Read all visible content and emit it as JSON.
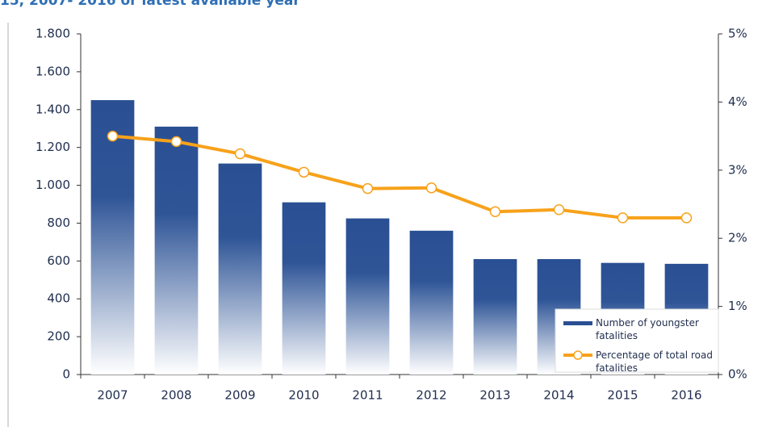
{
  "chart_data": {
    "type": "bar_line",
    "title": "15, 2007- 2016 or latest available year",
    "categories": [
      "2007",
      "2008",
      "2009",
      "2010",
      "2011",
      "2012",
      "2013",
      "2014",
      "2015",
      "2016"
    ],
    "series": [
      {
        "name": "Number of youngster fatalities",
        "type": "bar",
        "color": "#2a4f93",
        "values": [
          1450,
          1310,
          1115,
          910,
          825,
          760,
          610,
          610,
          590,
          585
        ]
      },
      {
        "name": "Percentage of total road fatalities",
        "type": "line",
        "axis": "y2",
        "color": "#f7a21b",
        "values": [
          3.5,
          3.42,
          3.24,
          2.97,
          2.73,
          2.74,
          2.39,
          2.42,
          2.3,
          2.3
        ]
      }
    ],
    "ylim": [
      0,
      1800
    ],
    "yticks": [
      0,
      200,
      400,
      600,
      800,
      {
        "value": 1000,
        "label": "1.000"
      },
      {
        "value": 1200,
        "label": "1.200"
      },
      {
        "value": 1400,
        "label": "1.400"
      },
      {
        "value": 1600,
        "label": "1.600"
      },
      {
        "value": 1800,
        "label": "1.800"
      }
    ],
    "y2lim": [
      0,
      5
    ],
    "y2ticks": [
      {
        "value": 0,
        "label": "0%"
      },
      {
        "value": 1,
        "label": "1%"
      },
      {
        "value": 2,
        "label": "2%"
      },
      {
        "value": 3,
        "label": "3%"
      },
      {
        "value": 4,
        "label": "4%"
      },
      {
        "value": 5,
        "label": "5%"
      }
    ],
    "grid": false,
    "legend": "lower right"
  }
}
